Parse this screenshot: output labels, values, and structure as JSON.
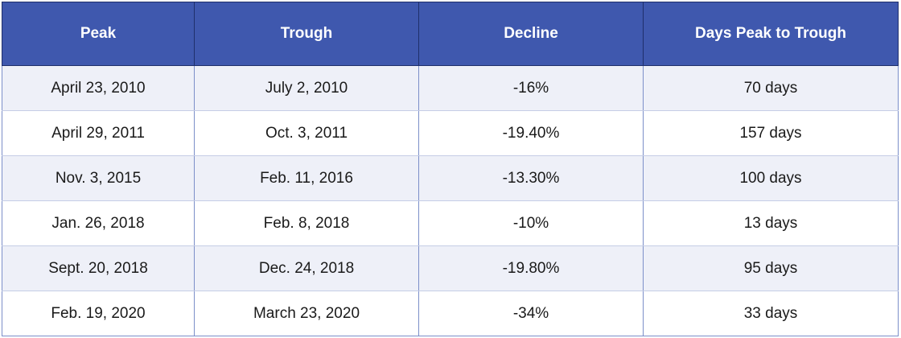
{
  "colors": {
    "header_bg": "#3f58ae",
    "header_text": "#ffffff",
    "row_band": "#eef0f8",
    "border": "#7c8fc9"
  },
  "chart_data": {
    "type": "table",
    "columns": [
      "Peak",
      "Trough",
      "Decline",
      "Days Peak to Trough"
    ],
    "rows": [
      [
        "April 23, 2010",
        "July 2, 2010",
        "-16%",
        "70 days"
      ],
      [
        "April 29, 2011",
        "Oct. 3, 2011",
        "-19.40%",
        "157 days"
      ],
      [
        "Nov. 3, 2015",
        "Feb. 11, 2016",
        "-13.30%",
        "100 days"
      ],
      [
        "Jan. 26, 2018",
        "Feb. 8, 2018",
        "-10%",
        "13 days"
      ],
      [
        "Sept. 20, 2018",
        "Dec. 24, 2018",
        "-19.80%",
        "95 days"
      ],
      [
        "Feb. 19, 2020",
        "March 23, 2020",
        "-34%",
        "33 days"
      ]
    ]
  }
}
